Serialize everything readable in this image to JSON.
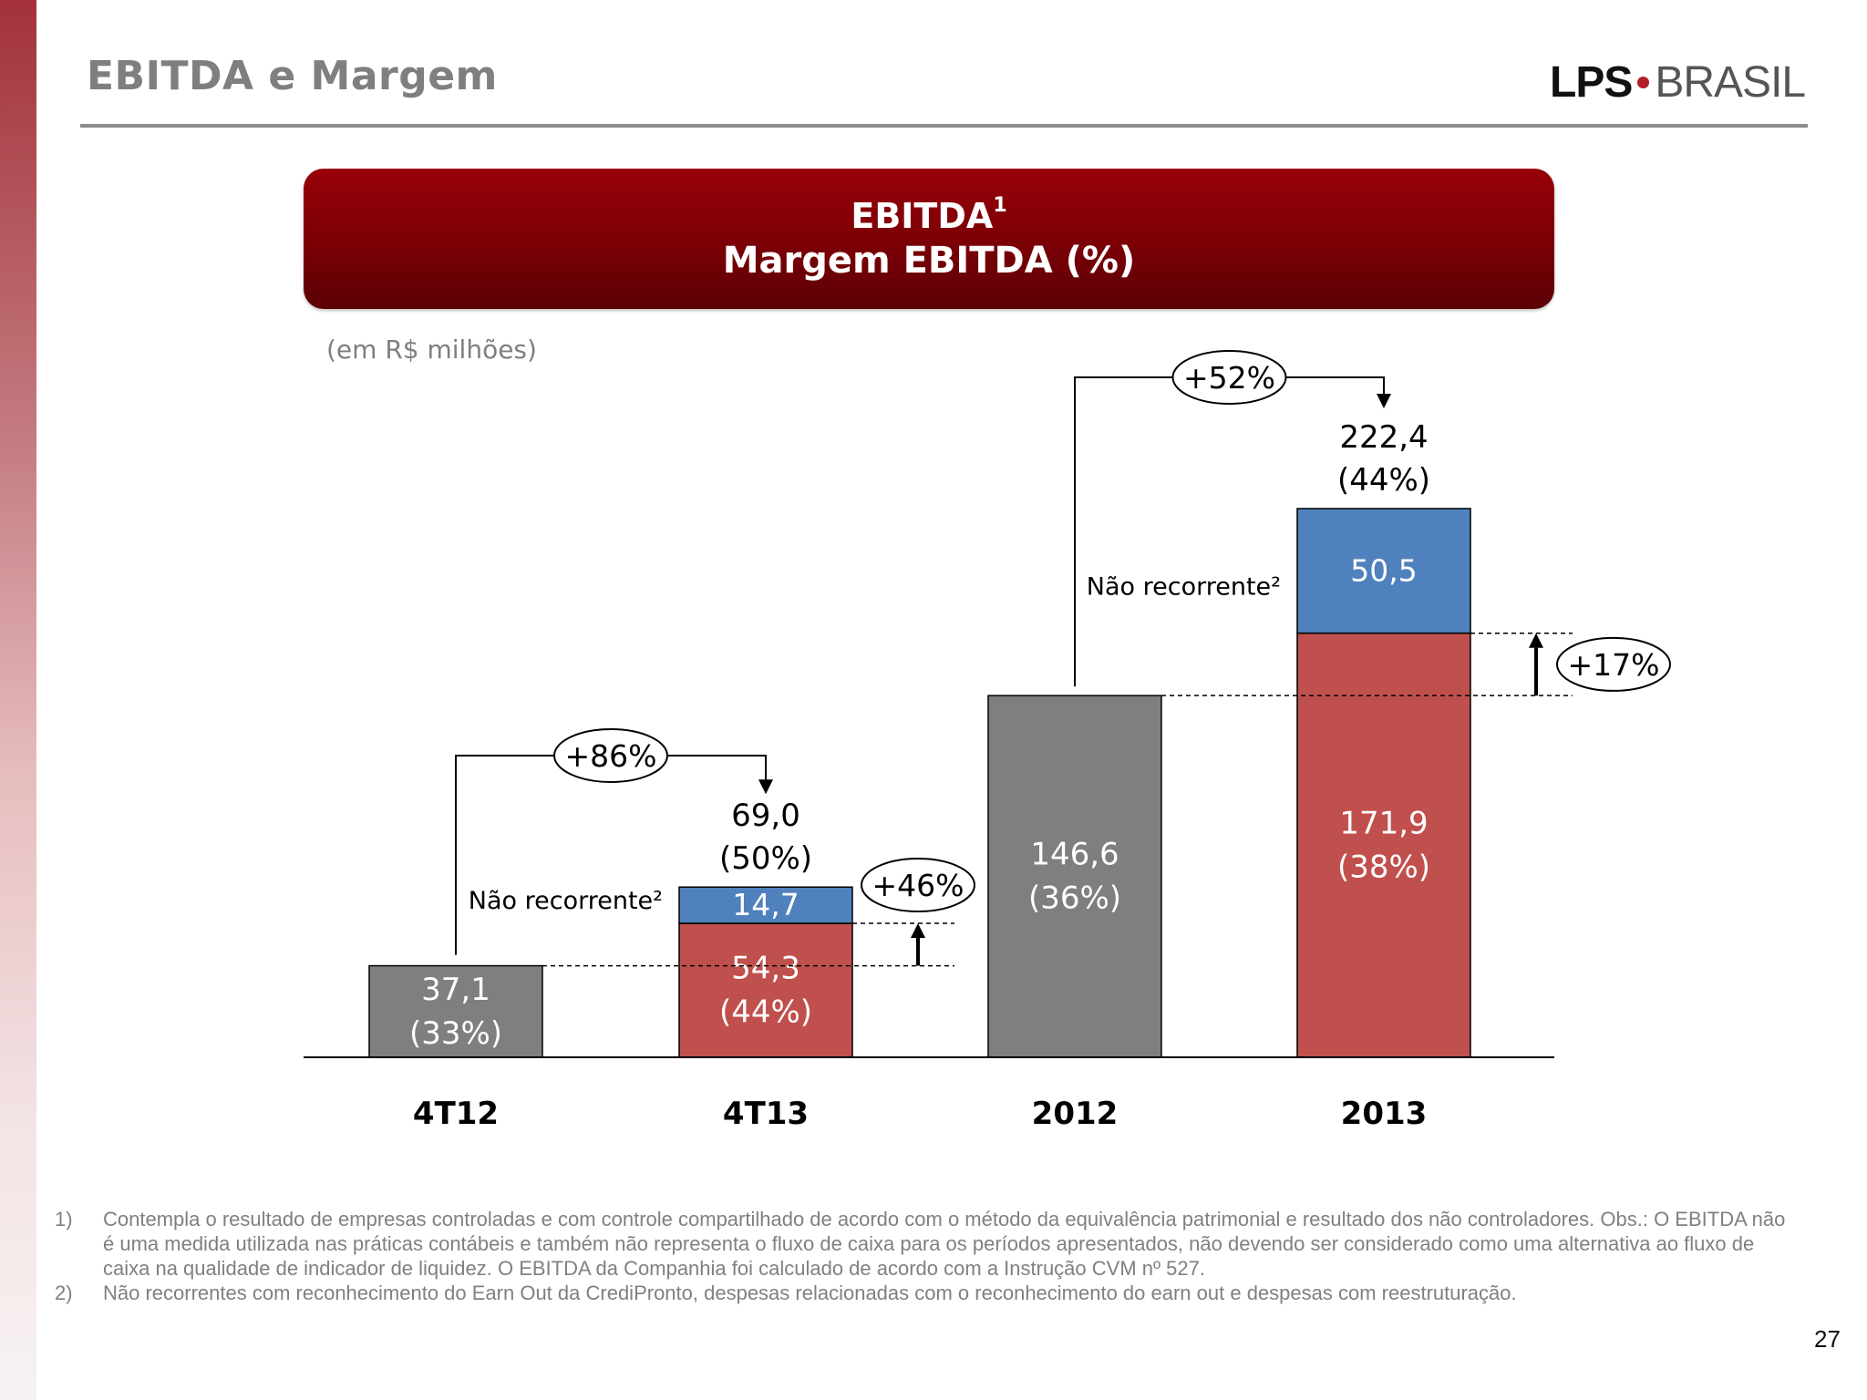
{
  "header": {
    "title": "EBITDA e Margem"
  },
  "logo": {
    "left": "LPS",
    "right": "BRASIL",
    "brand_red": "#b11e25"
  },
  "banner": {
    "line1": "EBITDA",
    "line1_sup": "1",
    "line2": "Margem EBITDA (%)"
  },
  "unit_note": "(em R$ milhões)",
  "chart_data": {
    "type": "bar",
    "title": "EBITDA / Margem EBITDA (%)",
    "unit": "R$ milhões",
    "categories": [
      "4T12",
      "4T13",
      "2012",
      "2013"
    ],
    "series": [
      {
        "name": "EBITDA",
        "values": [
          37.1,
          54.3,
          146.6,
          171.9
        ],
        "labels": [
          "37,1",
          "54,3",
          "146,6",
          "171,9"
        ],
        "margins": [
          "(33%)",
          "(44%)",
          "(36%)",
          "(38%)"
        ]
      },
      {
        "name": "Não recorrente",
        "values": [
          null,
          14.7,
          null,
          50.5
        ],
        "labels": [
          null,
          "14,7",
          null,
          "50,5"
        ]
      }
    ],
    "totals": [
      {
        "category": "4T13",
        "value": 69.0,
        "label": "69,0",
        "margin": "(50%)"
      },
      {
        "category": "2013",
        "value": 222.4,
        "label": "222,4",
        "margin": "(44%)"
      }
    ],
    "non_recurring_label": "Não recorrente²",
    "growth": [
      {
        "from": "4T12",
        "to": "4T13",
        "basis": "total",
        "label": "+86%"
      },
      {
        "from": "4T12",
        "to": "4T13",
        "basis": "recurring",
        "label": "+46%"
      },
      {
        "from": "2012",
        "to": "2013",
        "basis": "total",
        "label": "+52%"
      },
      {
        "from": "2012",
        "to": "2013",
        "basis": "recurring",
        "label": "+17%"
      }
    ],
    "colors": {
      "past": "#7f7f7f",
      "current": "#c0504d",
      "non_recurring": "#4f81bd",
      "axis": "#000000"
    },
    "ylim": [
      0,
      222.4
    ]
  },
  "footnotes": [
    {
      "num": "1)",
      "text": "Contempla o resultado de empresas controladas e com controle compartilhado de acordo com o método da equivalência patrimonial e resultado dos não controladores. Obs.: O EBITDA não é uma medida utilizada nas práticas contábeis e também não representa o fluxo de caixa para os períodos apresentados, não devendo ser considerado como uma alternativa ao fluxo de caixa na qualidade de indicador de liquidez. O EBITDA da Companhia foi calculado de acordo com a Instrução CVM nº 527."
    },
    {
      "num": "2)",
      "text": "Não recorrentes com reconhecimento do Earn Out da CrediPronto, despesas relacionadas com o reconhecimento do earn out e despesas com reestruturação."
    }
  ],
  "page_number": "27"
}
